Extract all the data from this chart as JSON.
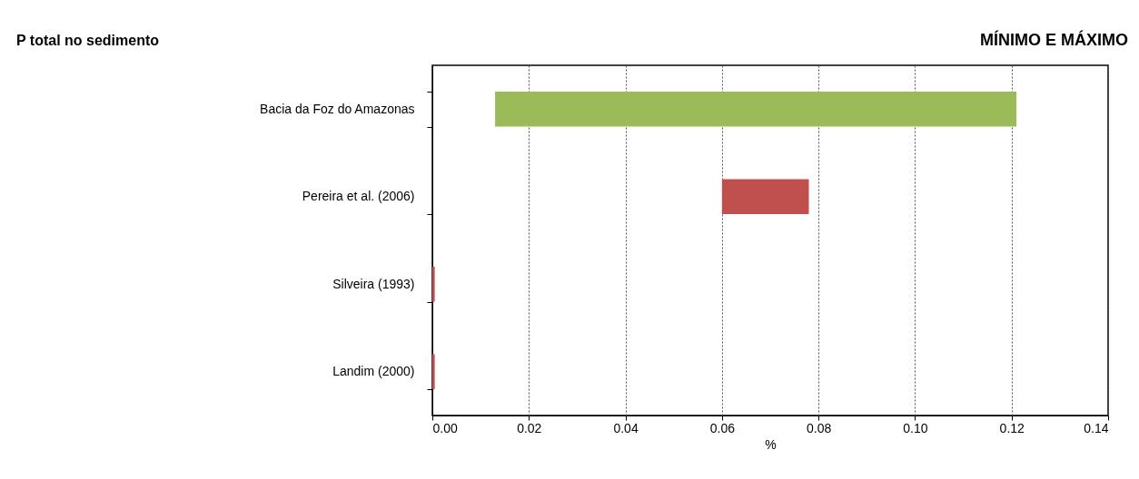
{
  "chart_data": {
    "type": "bar",
    "orientation": "horizontal",
    "title": "P total no sedimento",
    "subtitle": "MÍNIMO E MÁXIMO",
    "xlabel": "%",
    "categories": [
      "Bacia da Foz do Amazonas",
      "Pereira et al. (2006)",
      "Silveira (1993)",
      "Landim (2000)"
    ],
    "base": [
      0.013,
      0.06,
      0,
      0
    ],
    "values": [
      0.108,
      0.018,
      0.0005,
      0.0005
    ],
    "colors": [
      "#9bbb59",
      "#c0504d",
      "#c0504d",
      "#c0504d"
    ],
    "xlim": [
      0,
      0.14
    ],
    "xticks": [
      {
        "value": 0,
        "label": "0.00"
      },
      {
        "value": 0.02,
        "label": "0.02"
      },
      {
        "value": 0.04,
        "label": "0.04"
      },
      {
        "value": 0.06,
        "label": "0.06"
      },
      {
        "value": 0.08,
        "label": "0.08"
      },
      {
        "value": 0.1,
        "label": "0.10"
      },
      {
        "value": 0.12,
        "label": "0.12"
      },
      {
        "value": 0.14,
        "label": "0.14"
      }
    ],
    "grid": "x"
  }
}
